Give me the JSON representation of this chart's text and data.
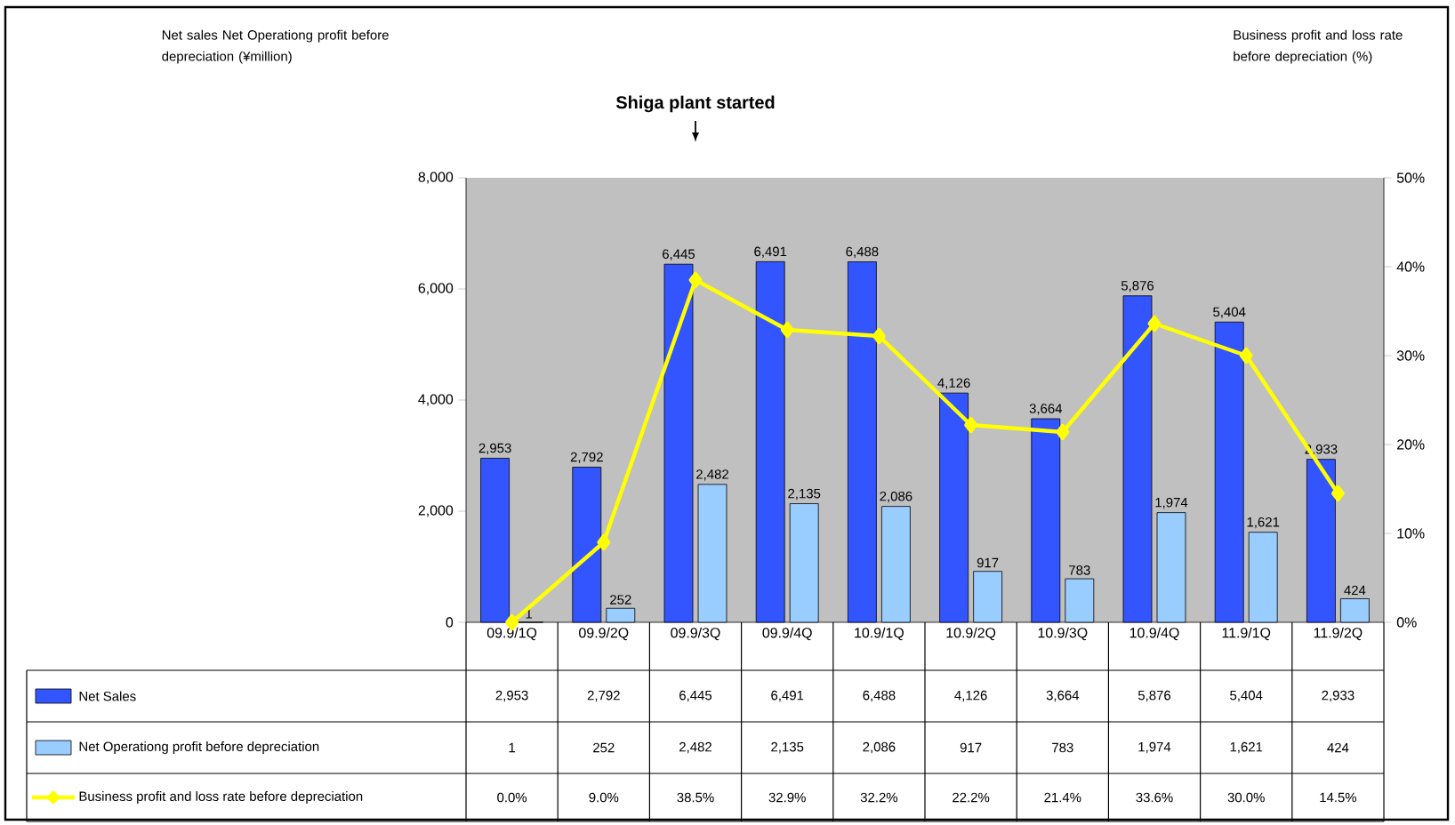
{
  "chart_data": {
    "type": "bar",
    "annotations": [
      "Net sales Net Operationg profit before depreciation (¥million)",
      "Shiga plant started",
      "Business profit and loss rate before depreciation (%)"
    ],
    "categories": [
      "09.9/1Q",
      "09.9/2Q",
      "09.9/3Q",
      "09.9/4Q",
      "10.9/1Q",
      "10.9/2Q",
      "10.9/3Q",
      "10.9/4Q",
      "11.9/1Q",
      "11.9/2Q"
    ],
    "series": [
      {
        "name": "Net Sales",
        "color": "#3355ff",
        "values": [
          2953,
          2792,
          6445,
          6491,
          6488,
          4126,
          3664,
          5876,
          5404,
          2933
        ],
        "value_labels": [
          "2,953",
          "2,792",
          "6,445",
          "6,491",
          "6,488",
          "4,126",
          "3,664",
          "5,876",
          "5,404",
          "2,933"
        ]
      },
      {
        "name": "Net Operationg profit before depreciation",
        "color": "#99ccff",
        "values": [
          1,
          252,
          2482,
          2135,
          2086,
          917,
          783,
          1974,
          1621,
          424
        ],
        "value_labels": [
          "1",
          "252",
          "2,482",
          "2,135",
          "2,086",
          "917",
          "783",
          "1,974",
          "1,621",
          "424"
        ]
      },
      {
        "name": "Business profit and loss rate before depreciation",
        "type": "line",
        "axis": "y2",
        "color": "#ffff00",
        "marker": "diamond",
        "values": [
          0.0,
          9.0,
          38.5,
          32.9,
          32.2,
          22.2,
          21.4,
          33.6,
          30.0,
          14.5
        ],
        "value_labels": [
          "0.0%",
          "9.0%",
          "38.5%",
          "32.9%",
          "32.2%",
          "22.2%",
          "21.4%",
          "33.6%",
          "30.0%",
          "14.5%"
        ]
      }
    ],
    "ylim": [
      0,
      8000
    ],
    "yticks": [
      {
        "value": 0,
        "label": "0"
      },
      {
        "value": 2000,
        "label": "2,000"
      },
      {
        "value": 4000,
        "label": "4,000"
      },
      {
        "value": 6000,
        "label": "6,000"
      },
      {
        "value": 8000,
        "label": "8,000"
      }
    ],
    "y2lim": [
      0,
      50
    ],
    "y2ticks": [
      {
        "value": 0,
        "label": "0%"
      },
      {
        "value": 10,
        "label": "10%"
      },
      {
        "value": 20,
        "label": "20%"
      },
      {
        "value": 30,
        "label": "30%"
      },
      {
        "value": 40,
        "label": "40%"
      },
      {
        "value": 50,
        "label": "50%"
      }
    ],
    "legend": "bottom",
    "grid": false
  }
}
